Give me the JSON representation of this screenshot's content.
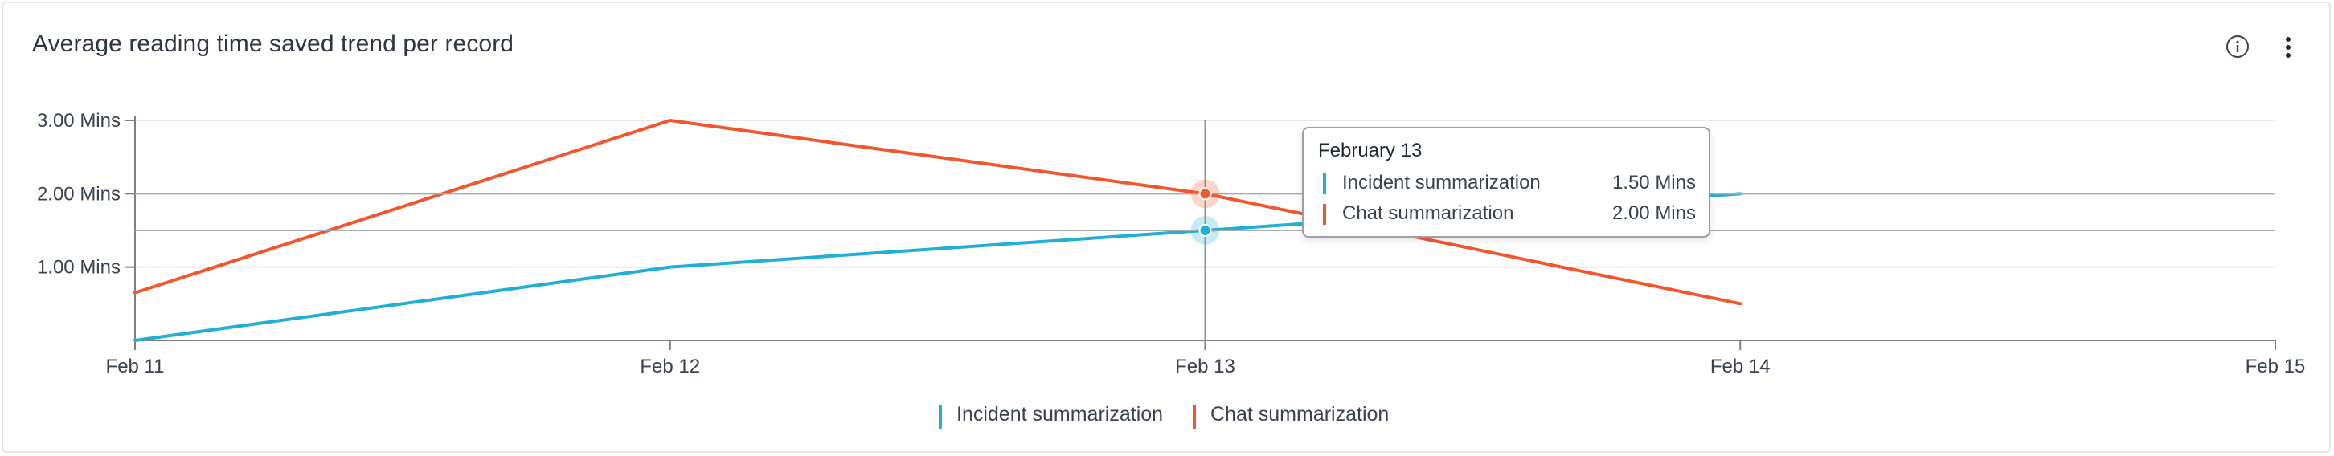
{
  "header": {
    "title": "Average reading time saved trend per record",
    "info_icon": "info-icon",
    "menu_icon": "more-vertical-icon"
  },
  "colors": {
    "incident": "#1fb0d3",
    "chat": "#f1562d",
    "grid": "#e6e8eb",
    "axis": "#7a808a",
    "crosshair": "#8f959e"
  },
  "chart_data": {
    "type": "line",
    "x": [
      "Feb 11",
      "Feb 12",
      "Feb 13",
      "Feb 14",
      "Feb 15"
    ],
    "y_ticks": [
      {
        "value": 1,
        "label": "1.00 Mins"
      },
      {
        "value": 2,
        "label": "2.00 Mins"
      },
      {
        "value": 3,
        "label": "3.00 Mins"
      }
    ],
    "ylim": [
      0,
      3
    ],
    "grid": true,
    "legend_position": "bottom-center",
    "series": [
      {
        "name": "Incident summarization",
        "color": "#1fb0d3",
        "values": [
          0,
          1.0,
          1.5,
          2.0,
          null
        ]
      },
      {
        "name": "Chat summarization",
        "color": "#f1562d",
        "values": [
          0.65,
          3.0,
          2.0,
          0.5,
          null
        ]
      }
    ],
    "hover": {
      "index": 2,
      "date": "February 13",
      "rows": [
        {
          "name": "Incident summarization",
          "value": "1.50 Mins",
          "color": "#1fb0d3"
        },
        {
          "name": "Chat summarization",
          "value": "2.00 Mins",
          "color": "#f1562d"
        }
      ]
    }
  }
}
